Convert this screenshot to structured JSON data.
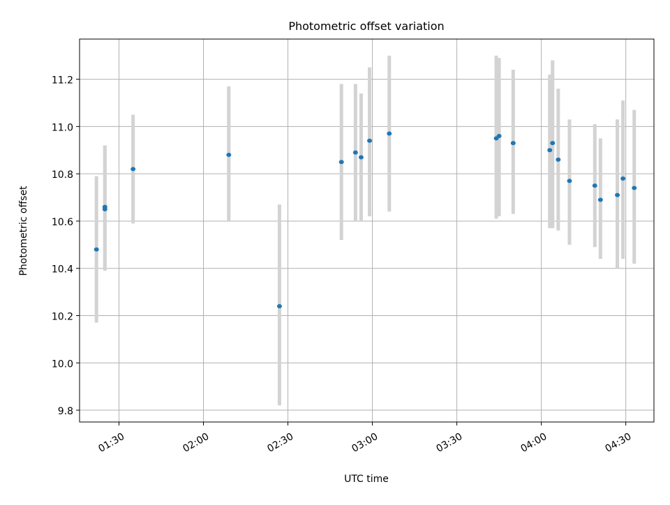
{
  "chart_data": {
    "type": "scatter",
    "title": "Photometric offset variation",
    "xlabel": "UTC time",
    "ylabel": "Photometric offset",
    "x_ticks": [
      "01:30",
      "02:00",
      "02:30",
      "03:00",
      "03:30",
      "04:00",
      "04:30"
    ],
    "y_ticks": [
      9.8,
      10.0,
      10.2,
      10.4,
      10.6,
      10.8,
      11.0,
      11.2
    ],
    "xlim": [
      "01:16",
      "04:40"
    ],
    "ylim": [
      9.75,
      11.37
    ],
    "grid": true,
    "marker_color": "#1f77b4",
    "errorbar_color": "#d3d3d3",
    "points": [
      {
        "x": "01:22",
        "y": 10.48,
        "lo": 10.17,
        "hi": 10.79
      },
      {
        "x": "01:25",
        "y": 10.65,
        "lo": 10.39,
        "hi": 10.92
      },
      {
        "x": "01:25",
        "y": 10.66,
        "lo": 10.4,
        "hi": 10.92
      },
      {
        "x": "01:35",
        "y": 10.82,
        "lo": 10.59,
        "hi": 11.05
      },
      {
        "x": "02:09",
        "y": 10.88,
        "lo": 10.6,
        "hi": 11.17
      },
      {
        "x": "02:27",
        "y": 10.24,
        "lo": 9.82,
        "hi": 10.67
      },
      {
        "x": "02:49",
        "y": 10.85,
        "lo": 10.52,
        "hi": 11.18
      },
      {
        "x": "02:54",
        "y": 10.89,
        "lo": 10.6,
        "hi": 11.18
      },
      {
        "x": "02:56",
        "y": 10.87,
        "lo": 10.6,
        "hi": 11.14
      },
      {
        "x": "02:59",
        "y": 10.94,
        "lo": 10.62,
        "hi": 11.25
      },
      {
        "x": "03:06",
        "y": 10.97,
        "lo": 10.64,
        "hi": 11.3
      },
      {
        "x": "03:44",
        "y": 10.95,
        "lo": 10.61,
        "hi": 11.3
      },
      {
        "x": "03:45",
        "y": 10.96,
        "lo": 10.62,
        "hi": 11.29
      },
      {
        "x": "03:50",
        "y": 10.93,
        "lo": 10.63,
        "hi": 11.24
      },
      {
        "x": "04:03",
        "y": 10.9,
        "lo": 10.57,
        "hi": 11.22
      },
      {
        "x": "04:04",
        "y": 10.93,
        "lo": 10.57,
        "hi": 11.28
      },
      {
        "x": "04:06",
        "y": 10.86,
        "lo": 10.56,
        "hi": 11.16
      },
      {
        "x": "04:10",
        "y": 10.77,
        "lo": 10.5,
        "hi": 11.03
      },
      {
        "x": "04:19",
        "y": 10.75,
        "lo": 10.49,
        "hi": 11.01
      },
      {
        "x": "04:21",
        "y": 10.69,
        "lo": 10.44,
        "hi": 10.95
      },
      {
        "x": "04:27",
        "y": 10.71,
        "lo": 10.4,
        "hi": 11.03
      },
      {
        "x": "04:29",
        "y": 10.78,
        "lo": 10.44,
        "hi": 11.11
      },
      {
        "x": "04:33",
        "y": 10.74,
        "lo": 10.42,
        "hi": 11.07
      }
    ]
  }
}
